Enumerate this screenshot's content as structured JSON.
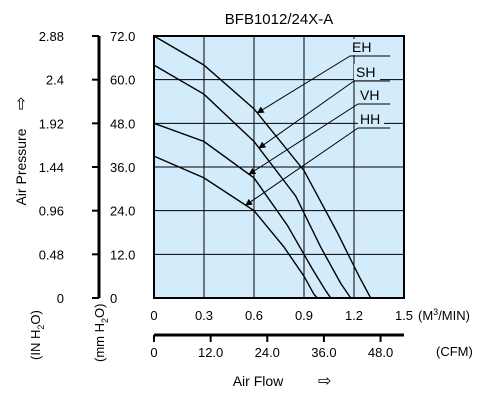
{
  "chart_data": {
    "type": "line",
    "title": "BFB1012/24X-A",
    "xlabel": "Air Flow",
    "ylabel": "Air Pressure",
    "x_primary": {
      "unit": "(M3/MIN)",
      "range": [
        0,
        1.5
      ],
      "ticks": [
        "0",
        "0.3",
        "0.6",
        "0.9",
        "1.2",
        "1.5"
      ]
    },
    "x_secondary": {
      "unit": "(CFM)",
      "range": [
        0,
        52.97
      ],
      "ticks": [
        "0",
        "12.0",
        "24.0",
        "36.0",
        "48.0"
      ],
      "tick_values": [
        0,
        12,
        24,
        36,
        48
      ]
    },
    "y_primary": {
      "unit": "(mm H2O)",
      "range": [
        0,
        72
      ],
      "ticks": [
        "0",
        "12.0",
        "24.0",
        "36.0",
        "48.0",
        "60.0",
        "72.0"
      ]
    },
    "y_secondary": {
      "unit": "(IN H2O)",
      "ticks": [
        "0",
        "0.48",
        "0.96",
        "1.44",
        "1.92",
        "2.4",
        "2.88"
      ]
    },
    "grid": true,
    "series": [
      {
        "name": "EH",
        "x": [
          0,
          0.3,
          0.6,
          0.9,
          1.1,
          1.23,
          1.3
        ],
        "y": [
          72,
          64,
          52,
          35,
          18,
          6,
          0
        ]
      },
      {
        "name": "SH",
        "x": [
          0,
          0.3,
          0.6,
          0.85,
          1.0,
          1.12,
          1.18
        ],
        "y": [
          64,
          56,
          43,
          28,
          14,
          4,
          0
        ]
      },
      {
        "name": "VH",
        "x": [
          0,
          0.3,
          0.6,
          0.8,
          0.95,
          1.03,
          1.06
        ],
        "y": [
          48,
          43,
          33,
          20,
          8,
          2,
          0
        ]
      },
      {
        "name": "HH",
        "x": [
          0,
          0.3,
          0.6,
          0.78,
          0.9,
          0.96,
          0.98
        ],
        "y": [
          39,
          33,
          24,
          14,
          6,
          1,
          0
        ]
      }
    ],
    "legend_labels": [
      "EH",
      "SH",
      "VH",
      "HH"
    ],
    "arrow_label": "⇨"
  }
}
